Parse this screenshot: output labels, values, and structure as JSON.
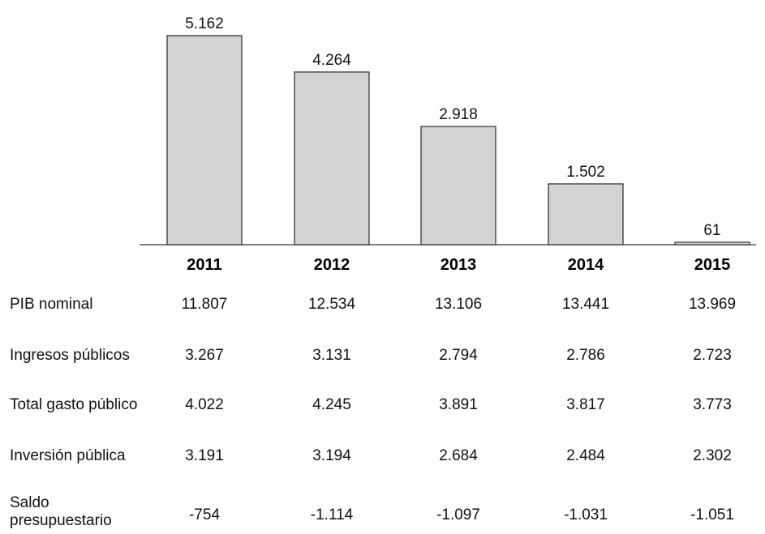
{
  "chart_data": {
    "type": "bar",
    "categories": [
      "2011",
      "2012",
      "2013",
      "2014",
      "2015"
    ],
    "values": [
      5162,
      4264,
      2918,
      1502,
      61
    ],
    "value_labels": [
      "5.162",
      "4.264",
      "2.918",
      "1.502",
      "61"
    ],
    "title": "",
    "xlabel": "",
    "ylabel": "",
    "ylim": [
      0,
      5162
    ],
    "grid": false,
    "colors": {
      "bar_fill": "#d3d3d3",
      "bar_stroke": "#2a2a2a"
    }
  },
  "table": {
    "rows": [
      {
        "label": "PIB nominal",
        "values": [
          "11.807",
          "12.534",
          "13.106",
          "13.441",
          "13.969"
        ]
      },
      {
        "label": "Ingresos públicos",
        "values": [
          "3.267",
          "3.131",
          "2.794",
          "2.786",
          "2.723"
        ]
      },
      {
        "label": "Total gasto público",
        "values": [
          "4.022",
          "4.245",
          "3.891",
          "3.817",
          "3.773"
        ]
      },
      {
        "label": "Inversión pública",
        "values": [
          "3.191",
          "3.194",
          "2.684",
          "2.484",
          "2.302"
        ]
      },
      {
        "label": "Saldo\npresupuestario",
        "values": [
          "-754",
          "-1.114",
          "-1.097",
          "-1.031",
          "-1.051"
        ]
      }
    ]
  }
}
